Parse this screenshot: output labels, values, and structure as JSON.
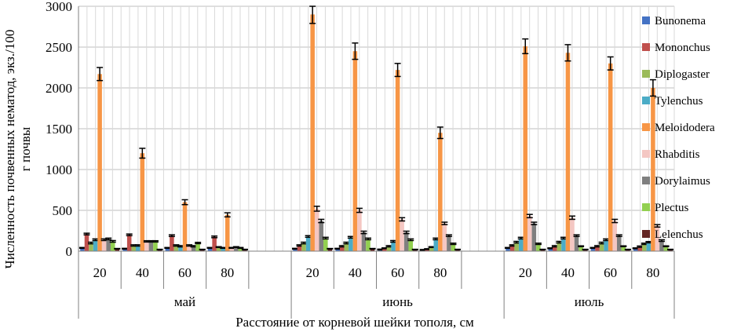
{
  "chart_data": {
    "type": "bar",
    "xlabel": "Расстояние от корневой шейки тополя, см",
    "ylabel_line1": "Численность почвенных нематод, экз./100",
    "ylabel_line2": "г почвы",
    "ylim": [
      0,
      3000
    ],
    "yticks": [
      0,
      500,
      1000,
      1500,
      2000,
      2500,
      3000
    ],
    "grid": true,
    "legend_position": "right",
    "groups": [
      {
        "label": "май",
        "categories": [
          "20",
          "40",
          "60",
          "80"
        ]
      },
      {
        "label": "июнь",
        "categories": [
          "20",
          "40",
          "60",
          "80"
        ]
      },
      {
        "label": "июль",
        "categories": [
          "20",
          "40",
          "60",
          "80"
        ]
      }
    ],
    "series": [
      {
        "name": "Bunonema",
        "color": "#4472C4",
        "values": [
          40,
          30,
          40,
          40,
          30,
          30,
          20,
          15,
          40,
          35,
          40,
          35
        ],
        "errors": [
          5,
          5,
          5,
          5,
          5,
          5,
          5,
          5,
          5,
          5,
          5,
          5
        ]
      },
      {
        "name": "Mononchus",
        "color": "#C0504D",
        "values": [
          210,
          200,
          190,
          175,
          70,
          60,
          35,
          25,
          70,
          60,
          60,
          55
        ],
        "errors": [
          10,
          10,
          10,
          10,
          8,
          8,
          5,
          5,
          8,
          8,
          8,
          8
        ]
      },
      {
        "name": "Diplogaster",
        "color": "#9BBB59",
        "values": [
          100,
          70,
          70,
          50,
          100,
          100,
          60,
          50,
          110,
          110,
          100,
          90
        ],
        "errors": [
          10,
          8,
          8,
          5,
          10,
          10,
          8,
          5,
          10,
          10,
          10,
          8
        ]
      },
      {
        "name": "Tylenchus",
        "color": "#4BACC6",
        "values": [
          140,
          70,
          60,
          40,
          180,
          170,
          120,
          150,
          160,
          160,
          140,
          110
        ],
        "errors": [
          10,
          8,
          8,
          5,
          10,
          10,
          10,
          10,
          10,
          10,
          10,
          8
        ]
      },
      {
        "name": "Meloidodera",
        "color": "#F79646",
        "values": [
          2170,
          1200,
          600,
          445,
          2900,
          2450,
          2220,
          1450,
          2510,
          2430,
          2300,
          2000
        ],
        "errors": [
          80,
          60,
          30,
          25,
          110,
          100,
          80,
          70,
          90,
          100,
          80,
          100
        ]
      },
      {
        "name": "Rhabditis",
        "color": "#F4C7C3",
        "values": [
          140,
          120,
          70,
          40,
          520,
          500,
          390,
          340,
          430,
          410,
          370,
          310
        ],
        "errors": [
          10,
          8,
          8,
          5,
          30,
          25,
          20,
          15,
          20,
          20,
          20,
          15
        ]
      },
      {
        "name": "Dorylaimus",
        "color": "#7F7F7F",
        "values": [
          150,
          120,
          60,
          50,
          370,
          230,
          230,
          190,
          340,
          190,
          190,
          130
        ],
        "errors": [
          10,
          8,
          8,
          5,
          20,
          15,
          15,
          10,
          15,
          10,
          10,
          10
        ]
      },
      {
        "name": "Plectus",
        "color": "#92D050",
        "values": [
          120,
          120,
          100,
          40,
          160,
          150,
          140,
          90,
          90,
          60,
          60,
          60
        ],
        "errors": [
          10,
          8,
          8,
          5,
          10,
          10,
          10,
          8,
          8,
          5,
          5,
          5
        ]
      },
      {
        "name": "Lelenchus",
        "color": "#632523",
        "values": [
          30,
          20,
          20,
          20,
          30,
          30,
          20,
          20,
          20,
          20,
          20,
          20
        ],
        "errors": [
          3,
          3,
          3,
          3,
          3,
          3,
          3,
          3,
          3,
          3,
          3,
          3
        ]
      }
    ]
  }
}
